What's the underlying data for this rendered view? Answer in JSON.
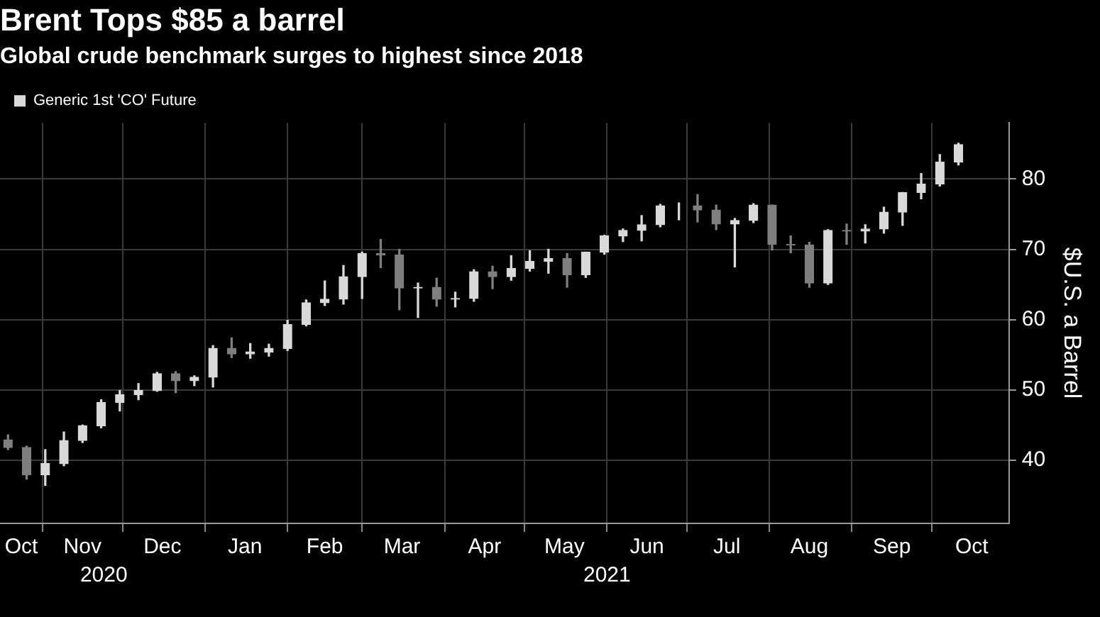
{
  "chart_data": {
    "type": "candlestick",
    "title": "Brent Tops $85 a barrel",
    "subtitle": "Global crude benchmark surges to highest since 2018",
    "ylabel": "$U.S. a Barrel",
    "x": [
      "2020-10-19",
      "2020-10-26",
      "2020-11-02",
      "2020-11-09",
      "2020-11-16",
      "2020-11-23",
      "2020-11-30",
      "2020-12-07",
      "2020-12-14",
      "2020-12-21",
      "2020-12-28",
      "2021-01-04",
      "2021-01-11",
      "2021-01-18",
      "2021-01-25",
      "2021-02-01",
      "2021-02-08",
      "2021-02-15",
      "2021-02-22",
      "2021-03-01",
      "2021-03-08",
      "2021-03-15",
      "2021-03-22",
      "2021-03-29",
      "2021-04-05",
      "2021-04-12",
      "2021-04-19",
      "2021-04-26",
      "2021-05-03",
      "2021-05-10",
      "2021-05-17",
      "2021-05-24",
      "2021-05-31",
      "2021-06-07",
      "2021-06-14",
      "2021-06-21",
      "2021-06-28",
      "2021-07-05",
      "2021-07-12",
      "2021-07-19",
      "2021-07-26",
      "2021-08-02",
      "2021-08-09",
      "2021-08-16",
      "2021-08-23",
      "2021-08-30",
      "2021-09-06",
      "2021-09-13",
      "2021-09-20",
      "2021-09-27",
      "2021-10-04",
      "2021-10-11"
    ],
    "series": [
      {
        "name": "Generic 1st 'CO' Future",
        "color": "#d9d9d9",
        "colors": [
          "#7f7f7f",
          "#7f7f7f",
          "#d9d9d9",
          "#d9d9d9",
          "#d9d9d9",
          "#d9d9d9",
          "#d9d9d9",
          "#d9d9d9",
          "#d9d9d9",
          "#7f7f7f",
          "#d9d9d9",
          "#d9d9d9",
          "#7f7f7f",
          "#d9d9d9",
          "#d9d9d9",
          "#d9d9d9",
          "#d9d9d9",
          "#d9d9d9",
          "#d9d9d9",
          "#d9d9d9",
          "#7f7f7f",
          "#7f7f7f",
          "#d9d9d9",
          "#7f7f7f",
          "#d9d9d9",
          "#d9d9d9",
          "#7f7f7f",
          "#d9d9d9",
          "#d9d9d9",
          "#d9d9d9",
          "#7f7f7f",
          "#d9d9d9",
          "#d9d9d9",
          "#d9d9d9",
          "#d9d9d9",
          "#d9d9d9",
          "#d9d9d9",
          "#7f7f7f",
          "#7f7f7f",
          "#d9d9d9",
          "#d9d9d9",
          "#7f7f7f",
          "#7f7f7f",
          "#7f7f7f",
          "#d9d9d9",
          "#7f7f7f",
          "#d9d9d9",
          "#d9d9d9",
          "#d9d9d9",
          "#d9d9d9",
          "#d9d9d9",
          "#d9d9d9"
        ],
        "ohlc": [
          [
            42.9,
            43.6,
            41.5,
            41.8
          ],
          [
            41.8,
            42.0,
            37.3,
            37.9
          ],
          [
            37.9,
            41.5,
            36.4,
            39.5
          ],
          [
            39.5,
            44.0,
            39.2,
            42.8
          ],
          [
            42.8,
            45.0,
            42.5,
            44.9
          ],
          [
            44.9,
            48.6,
            44.6,
            48.2
          ],
          [
            48.2,
            49.9,
            47.0,
            49.3
          ],
          [
            49.3,
            50.9,
            48.6,
            49.9
          ],
          [
            49.9,
            52.5,
            49.8,
            52.3
          ],
          [
            52.3,
            52.6,
            49.6,
            51.3
          ],
          [
            51.3,
            52.0,
            50.6,
            51.8
          ],
          [
            51.8,
            56.3,
            50.4,
            55.9
          ],
          [
            55.9,
            57.4,
            54.6,
            55.1
          ],
          [
            55.1,
            56.6,
            54.5,
            55.4
          ],
          [
            55.4,
            56.5,
            54.8,
            55.9
          ],
          [
            55.9,
            59.9,
            55.6,
            59.3
          ],
          [
            59.3,
            62.8,
            59.1,
            62.4
          ],
          [
            62.4,
            65.5,
            62.0,
            62.9
          ],
          [
            62.9,
            67.7,
            62.2,
            66.1
          ],
          [
            66.1,
            69.6,
            63.0,
            69.4
          ],
          [
            69.4,
            71.4,
            67.4,
            69.2
          ],
          [
            69.2,
            70.0,
            61.4,
            64.5
          ],
          [
            64.5,
            65.2,
            60.3,
            64.6
          ],
          [
            64.6,
            65.9,
            61.9,
            62.9
          ],
          [
            62.9,
            63.9,
            61.8,
            63.0
          ],
          [
            63.0,
            67.1,
            62.6,
            66.8
          ],
          [
            66.8,
            67.6,
            64.4,
            66.1
          ],
          [
            66.1,
            69.1,
            65.6,
            67.3
          ],
          [
            67.3,
            69.8,
            66.9,
            68.3
          ],
          [
            68.3,
            70.0,
            66.6,
            68.7
          ],
          [
            68.7,
            69.4,
            64.6,
            66.4
          ],
          [
            66.4,
            69.6,
            66.0,
            69.6
          ],
          [
            69.6,
            72.0,
            69.3,
            71.9
          ],
          [
            71.9,
            72.9,
            71.1,
            72.7
          ],
          [
            72.7,
            74.8,
            71.2,
            73.5
          ],
          [
            73.5,
            76.4,
            73.2,
            76.2
          ],
          [
            76.2,
            76.6,
            74.2,
            76.2
          ],
          [
            76.2,
            77.8,
            73.9,
            75.6
          ],
          [
            75.6,
            76.3,
            72.8,
            73.6
          ],
          [
            73.6,
            74.4,
            67.5,
            74.1
          ],
          [
            74.1,
            76.5,
            73.8,
            76.3
          ],
          [
            76.3,
            76.3,
            69.9,
            70.7
          ],
          [
            70.7,
            71.9,
            69.5,
            70.6
          ],
          [
            70.6,
            71.0,
            64.6,
            65.2
          ],
          [
            65.2,
            72.8,
            65.0,
            72.7
          ],
          [
            72.7,
            73.6,
            70.7,
            72.6
          ],
          [
            72.6,
            73.5,
            70.9,
            72.9
          ],
          [
            72.9,
            76.0,
            72.3,
            75.3
          ],
          [
            75.3,
            78.1,
            73.4,
            78.1
          ],
          [
            78.1,
            80.8,
            77.2,
            79.3
          ],
          [
            79.3,
            83.5,
            79.0,
            82.4
          ],
          [
            82.4,
            85.1,
            82.0,
            84.9
          ]
        ]
      }
    ],
    "xlim": [
      "2020-10-16",
      "2021-10-30"
    ],
    "xticks": [
      {
        "value": "2020-11-01",
        "label": null
      },
      {
        "value": "2020-12-01",
        "label": null
      },
      {
        "value": "2021-01-01",
        "label": null
      },
      {
        "value": "2021-02-01",
        "label": null
      },
      {
        "value": "2021-03-01",
        "label": null
      },
      {
        "value": "2021-04-01",
        "label": null
      },
      {
        "value": "2021-05-01",
        "label": null
      },
      {
        "value": "2021-06-01",
        "label": null
      },
      {
        "value": "2021-07-01",
        "label": null
      },
      {
        "value": "2021-08-01",
        "label": null
      },
      {
        "value": "2021-09-01",
        "label": null
      },
      {
        "value": "2021-10-01",
        "label": null
      },
      {
        "value": "2020-10-24",
        "label": "Oct"
      },
      {
        "value": "2020-11-16",
        "label": "Nov"
      },
      {
        "value": "2020-12-16",
        "label": "Dec"
      },
      {
        "value": "2021-01-16",
        "label": "Jan"
      },
      {
        "value": "2021-02-15",
        "label": "Feb"
      },
      {
        "value": "2021-03-16",
        "label": "Mar"
      },
      {
        "value": "2021-04-16",
        "label": "Apr"
      },
      {
        "value": "2021-05-16",
        "label": "May"
      },
      {
        "value": "2021-06-16",
        "label": "Jun"
      },
      {
        "value": "2021-07-16",
        "label": "Jul"
      },
      {
        "value": "2021-08-16",
        "label": "Aug"
      },
      {
        "value": "2021-09-16",
        "label": "Sep"
      },
      {
        "value": "2021-10-16",
        "label": "Oct"
      }
    ],
    "ylim": [
      31,
      88
    ],
    "yticks": [
      40,
      50,
      60,
      70,
      80
    ],
    "grid": true,
    "legend": "top left",
    "x2lim": [
      "2020-10-16",
      "2021-10-30"
    ],
    "x2ticks": [
      {
        "value": "2020-11-24",
        "label": "2020"
      },
      {
        "value": "2021-06-01",
        "label": "2021"
      }
    ]
  }
}
